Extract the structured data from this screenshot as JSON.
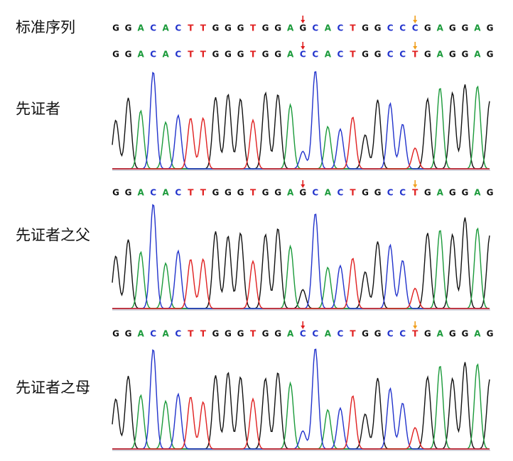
{
  "reference": {
    "label": "标准序列",
    "sequence": [
      "G",
      "G",
      "A",
      "C",
      "A",
      "C",
      "T",
      "T",
      "G",
      "G",
      "G",
      "T",
      "G",
      "G",
      "A",
      "G",
      "C",
      "A",
      "C",
      "T",
      "G",
      "G",
      "C",
      "C",
      "C",
      "G",
      "A",
      "G",
      "G",
      "A",
      "G"
    ]
  },
  "panels": [
    {
      "label": "先证者",
      "sequence": [
        "G",
        "G",
        "A",
        "C",
        "A",
        "C",
        "T",
        "T",
        "G",
        "G",
        "G",
        "T",
        "G",
        "G",
        "A",
        "C",
        "C",
        "A",
        "C",
        "T",
        "G",
        "G",
        "C",
        "C",
        "T",
        "G",
        "A",
        "G",
        "G",
        "A",
        "G"
      ]
    },
    {
      "label": "先证者之父",
      "sequence": [
        "G",
        "G",
        "A",
        "C",
        "A",
        "C",
        "T",
        "T",
        "G",
        "G",
        "G",
        "T",
        "G",
        "G",
        "A",
        "G",
        "C",
        "A",
        "C",
        "T",
        "G",
        "G",
        "C",
        "C",
        "T",
        "G",
        "A",
        "G",
        "G",
        "A",
        "G"
      ]
    },
    {
      "label": "先证者之母",
      "sequence": [
        "G",
        "G",
        "A",
        "C",
        "A",
        "C",
        "T",
        "T",
        "G",
        "G",
        "G",
        "T",
        "G",
        "G",
        "A",
        "C",
        "C",
        "A",
        "C",
        "T",
        "G",
        "G",
        "C",
        "C",
        "T",
        "G",
        "A",
        "G",
        "G",
        "A",
        "G"
      ]
    }
  ]
}
